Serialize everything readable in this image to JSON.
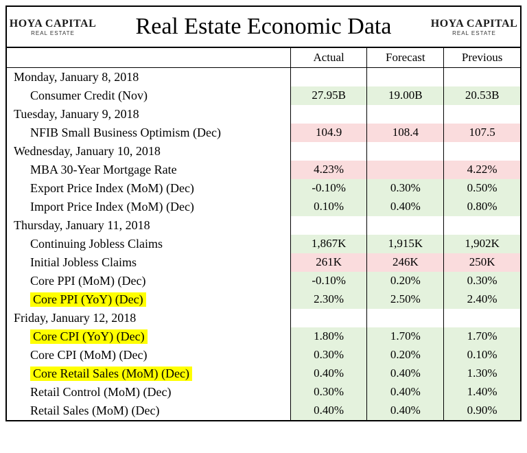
{
  "title": "Real Estate Economic Data",
  "logo": {
    "main": "HOYA CAPITAL",
    "sub": "REAL ESTATE"
  },
  "headers": {
    "actual": "Actual",
    "forecast": "Forecast",
    "previous": "Previous"
  },
  "colors": {
    "green": "#e4f2dd",
    "red": "#fadcdd",
    "yellow": "#ffff00",
    "white": "#ffffff"
  },
  "rows": [
    {
      "type": "day",
      "label": "Monday, January 8, 2018"
    },
    {
      "type": "item",
      "label": "Consumer Credit (Nov)",
      "actual": "27.95B",
      "forecast": "19.00B",
      "previous": "20.53B",
      "actual_bg": "green",
      "forecast_bg": "green",
      "previous_bg": "green"
    },
    {
      "type": "day",
      "label": "Tuesday, January 9, 2018"
    },
    {
      "type": "item",
      "label": "NFIB Small Business Optimism (Dec)",
      "actual": "104.9",
      "forecast": "108.4",
      "previous": "107.5",
      "actual_bg": "red",
      "forecast_bg": "red",
      "previous_bg": "red"
    },
    {
      "type": "day",
      "label": "Wednesday, January 10, 2018"
    },
    {
      "type": "item",
      "label": "MBA 30-Year Mortgage Rate",
      "actual": "4.23%",
      "forecast": "",
      "previous": "4.22%",
      "actual_bg": "red",
      "forecast_bg": "red",
      "previous_bg": "red"
    },
    {
      "type": "item",
      "label": "Export Price Index (MoM) (Dec)",
      "actual": "-0.10%",
      "forecast": "0.30%",
      "previous": "0.50%",
      "actual_bg": "green",
      "forecast_bg": "green",
      "previous_bg": "green"
    },
    {
      "type": "item",
      "label": "Import Price Index (MoM) (Dec)",
      "actual": "0.10%",
      "forecast": "0.40%",
      "previous": "0.80%",
      "actual_bg": "green",
      "forecast_bg": "green",
      "previous_bg": "green"
    },
    {
      "type": "day",
      "label": "Thursday, January 11, 2018"
    },
    {
      "type": "item",
      "label": "Continuing Jobless Claims",
      "actual": "1,867K",
      "forecast": "1,915K",
      "previous": "1,902K",
      "actual_bg": "green",
      "forecast_bg": "green",
      "previous_bg": "green"
    },
    {
      "type": "item",
      "label": "Initial Jobless Claims",
      "actual": "261K",
      "forecast": "246K",
      "previous": "250K",
      "actual_bg": "red",
      "forecast_bg": "red",
      "previous_bg": "red"
    },
    {
      "type": "item",
      "label": "Core PPI (MoM) (Dec)",
      "actual": "-0.10%",
      "forecast": "0.20%",
      "previous": "0.30%",
      "actual_bg": "green",
      "forecast_bg": "green",
      "previous_bg": "green"
    },
    {
      "type": "item",
      "label": "Core PPI (YoY) (Dec)",
      "highlight": true,
      "actual": "2.30%",
      "forecast": "2.50%",
      "previous": "2.40%",
      "actual_bg": "green",
      "forecast_bg": "green",
      "previous_bg": "green"
    },
    {
      "type": "day",
      "label": "Friday, January 12, 2018"
    },
    {
      "type": "item",
      "label": "Core CPI (YoY) (Dec)",
      "highlight": true,
      "actual": "1.80%",
      "forecast": "1.70%",
      "previous": "1.70%",
      "actual_bg": "green",
      "forecast_bg": "green",
      "previous_bg": "green"
    },
    {
      "type": "item",
      "label": "Core CPI (MoM) (Dec)",
      "actual": "0.30%",
      "forecast": "0.20%",
      "previous": "0.10%",
      "actual_bg": "green",
      "forecast_bg": "green",
      "previous_bg": "green"
    },
    {
      "type": "item",
      "label": "Core Retail Sales (MoM) (Dec)",
      "highlight": true,
      "actual": "0.40%",
      "forecast": "0.40%",
      "previous": "1.30%",
      "actual_bg": "green",
      "forecast_bg": "green",
      "previous_bg": "green"
    },
    {
      "type": "item",
      "label": "Retail Control (MoM) (Dec)",
      "actual": "0.30%",
      "forecast": "0.40%",
      "previous": "1.40%",
      "actual_bg": "green",
      "forecast_bg": "green",
      "previous_bg": "green"
    },
    {
      "type": "item",
      "label": "Retail Sales (MoM) (Dec)",
      "actual": "0.40%",
      "forecast": "0.40%",
      "previous": "0.90%",
      "actual_bg": "green",
      "forecast_bg": "green",
      "previous_bg": "green"
    }
  ]
}
